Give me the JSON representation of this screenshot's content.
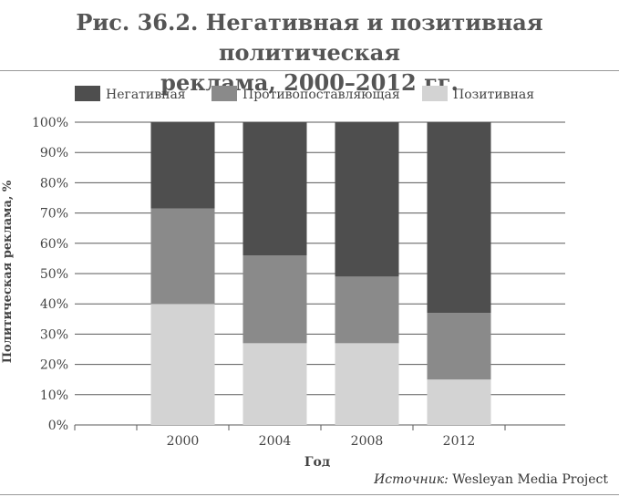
{
  "title": "Рис. 36.2. Негативная и позитивная политическая реклама, 2000–2012 гг.",
  "source": {
    "prefix": "Источник:",
    "text": "Wesleyan Media Project"
  },
  "chart_data": {
    "type": "bar",
    "stacked": true,
    "title": "Рис. 36.2. Негативная и позитивная политическая реклама, 2000–2012 гг.",
    "xlabel": "Год",
    "ylabel": "Политическая реклама, %",
    "categories": [
      "2000",
      "2004",
      "2008",
      "2012"
    ],
    "ylim": [
      0,
      100
    ],
    "yticks": [
      0,
      10,
      20,
      30,
      40,
      50,
      60,
      70,
      80,
      90,
      100
    ],
    "ytick_suffix": "%",
    "grid": true,
    "legend_position": "top",
    "series": [
      {
        "name": "Позитивная",
        "color": "#d3d3d3",
        "values": [
          40,
          27,
          27,
          15
        ]
      },
      {
        "name": "Противопоставляющая",
        "color": "#8a8a8a",
        "values": [
          31.5,
          29,
          22,
          22
        ]
      },
      {
        "name": "Негативная",
        "color": "#4e4e4e",
        "values": [
          28.5,
          44,
          51,
          63
        ]
      }
    ],
    "legend_order": [
      "Негативная",
      "Противопоставляющая",
      "Позитивная"
    ]
  }
}
